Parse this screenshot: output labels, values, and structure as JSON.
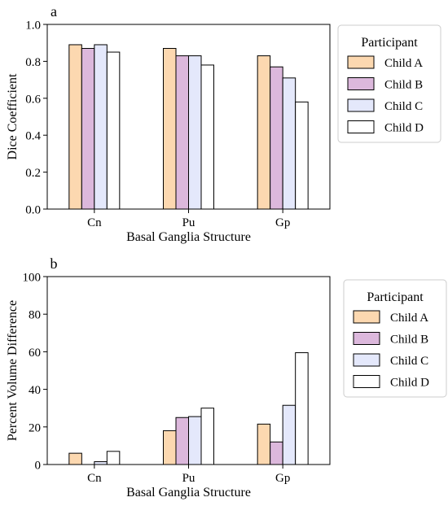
{
  "colors": {
    "Child A": "#fcd8b0",
    "Child B": "#dcb8dc",
    "Child C": "#e4e8fb",
    "Child D": "#ffffff",
    "edge": "#000000"
  },
  "chart_data": [
    {
      "type": "bar",
      "panel_label": "a",
      "categories": [
        "Cn",
        "Pu",
        "Gp"
      ],
      "series": [
        {
          "name": "Child A",
          "values": [
            0.89,
            0.87,
            0.83
          ]
        },
        {
          "name": "Child B",
          "values": [
            0.87,
            0.83,
            0.77
          ]
        },
        {
          "name": "Child C",
          "values": [
            0.89,
            0.83,
            0.71
          ]
        },
        {
          "name": "Child D",
          "values": [
            0.85,
            0.78,
            0.58
          ]
        }
      ],
      "xlabel": "Basal Ganglia Structure",
      "ylabel": "Dice Coefficient",
      "ylim": [
        0,
        1.0
      ],
      "yticks": [
        "0.0",
        "0.2",
        "0.4",
        "0.6",
        "0.8",
        "1.0"
      ],
      "legend_title": "Participant",
      "legend_position": "right",
      "grid": false
    },
    {
      "type": "bar",
      "panel_label": "b",
      "categories": [
        "Cn",
        "Pu",
        "Gp"
      ],
      "series": [
        {
          "name": "Child A",
          "values": [
            6,
            18,
            21.5
          ]
        },
        {
          "name": "Child B",
          "values": [
            0,
            25,
            12
          ]
        },
        {
          "name": "Child C",
          "values": [
            1.5,
            25.5,
            31.5
          ]
        },
        {
          "name": "Child D",
          "values": [
            7,
            30,
            59.5
          ]
        }
      ],
      "xlabel": "Basal Ganglia Structure",
      "ylabel": "Percent Volume Difference",
      "ylim": [
        0,
        100
      ],
      "yticks": [
        "0",
        "20",
        "40",
        "60",
        "80",
        "100"
      ],
      "legend_title": "Participant",
      "legend_position": "right",
      "grid": false
    }
  ]
}
